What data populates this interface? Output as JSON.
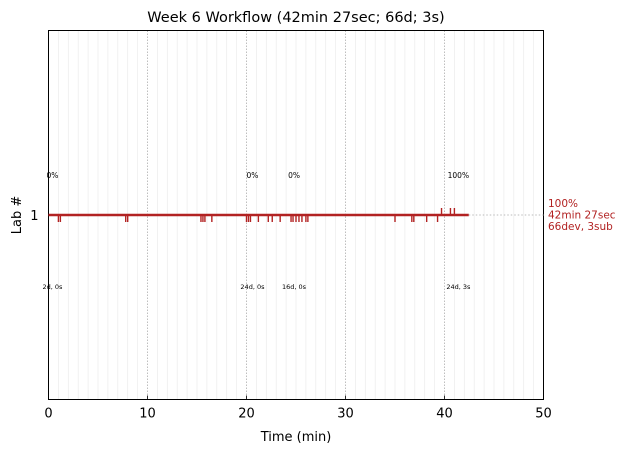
{
  "chart_data": {
    "type": "timeline",
    "title": "Week 6 Workflow (42min 27sec; 66d; 3s)",
    "xlabel": "Time (min)",
    "ylabel": "Lab #",
    "xlim": [
      0,
      50
    ],
    "xticks": [
      "0",
      "10",
      "20",
      "30",
      "40",
      "50"
    ],
    "yticks": [
      "1"
    ],
    "minor_grid_step": 1,
    "series": [
      {
        "lab": 1,
        "color": "#b22222",
        "end_time": 42.45,
        "dev_events_below": [
          1.0,
          1.2,
          7.8,
          8.0,
          15.4,
          15.6,
          15.8,
          16.5,
          20.0,
          20.2,
          20.4,
          21.2,
          22.2,
          22.6,
          23.4,
          24.5,
          24.7,
          25.0,
          25.3,
          25.6,
          26.0,
          26.2,
          35.0,
          36.7,
          36.9,
          38.2,
          39.3
        ],
        "sub_events_above": [
          39.7,
          40.6,
          41.0
        ],
        "annotations": [
          {
            "x": 0.2,
            "pct": "0%",
            "dur": "2d, 0s"
          },
          {
            "x": 20.4,
            "pct": "0%",
            "dur": "24d, 0s"
          },
          {
            "x": 24.6,
            "pct": "0%",
            "dur": "16d, 0s"
          },
          {
            "x": 41.2,
            "pct": "100%",
            "dur": "24d, 3s"
          }
        ],
        "end_label": [
          "100%",
          "42min 27sec",
          "66dev, 3sub"
        ]
      }
    ]
  }
}
